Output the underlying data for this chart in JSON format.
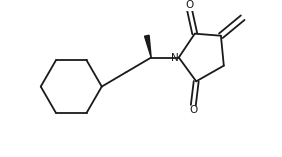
{
  "bg_color": "#ffffff",
  "line_color": "#1a1a1a",
  "n_color": "#1a1a1a",
  "line_width": 1.3,
  "fig_width": 2.82,
  "fig_height": 1.57,
  "dpi": 100,
  "xlim": [
    0.0,
    8.5
  ],
  "ylim": [
    0.5,
    5.5
  ]
}
